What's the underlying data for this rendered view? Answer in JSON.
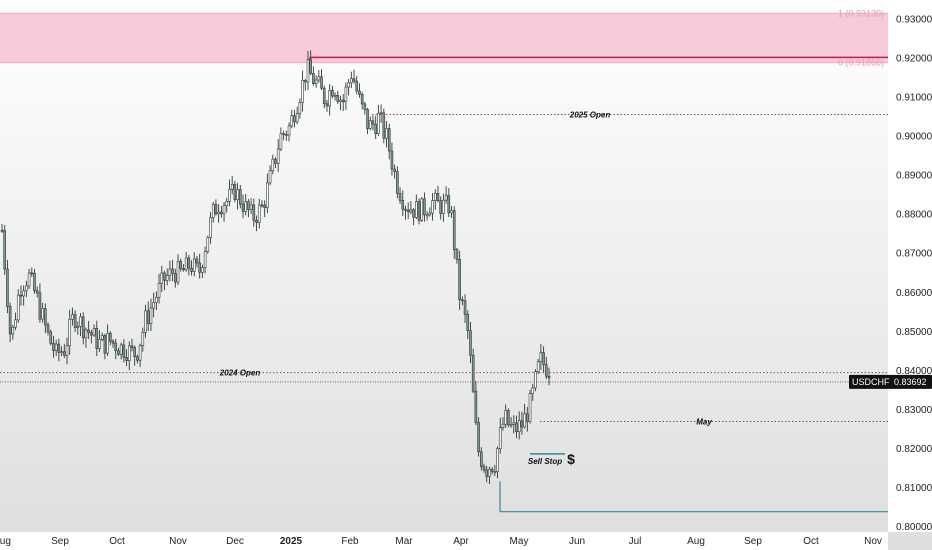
{
  "chart_data": {
    "type": "candlestick",
    "symbol": "USDCHF",
    "last_price": "0.83692",
    "ylim": [
      0.7985,
      0.9347
    ],
    "y_ticks": [
      "0.93000",
      "0.92000",
      "0.91000",
      "0.90000",
      "0.89000",
      "0.88000",
      "0.87000",
      "0.86000",
      "0.85000",
      "0.84000",
      "0.83000",
      "0.82000",
      "0.81000",
      "0.80000"
    ],
    "x_ticks": [
      "Aug",
      "Sep",
      "Oct",
      "Nov",
      "Dec",
      "2025",
      "Feb",
      "Mar",
      "Apr",
      "May",
      "Jun",
      "Jul",
      "Aug",
      "Sep",
      "Oct",
      "Nov"
    ],
    "bold_x_tick": "2025",
    "fib_zone": {
      "upper": 0.9313,
      "lower": 0.91866,
      "upper_label": "1 (0.93130)",
      "lower_label": "0 (0.91866)",
      "color": "#f7cbd9"
    },
    "levels": [
      {
        "name": "2025 Open",
        "value": 0.9054,
        "style": "dotted"
      },
      {
        "name": "2024 Open",
        "value": 0.8393,
        "style": "dotted"
      },
      {
        "name": "May",
        "value": 0.8268,
        "style": "dotted"
      },
      {
        "name": "Sell Stop",
        "value": 0.8185,
        "style": "solid"
      },
      {
        "name": "",
        "value": 0.8037,
        "style": "solid"
      },
      {
        "name": "",
        "value": 0.92,
        "style": "solid"
      }
    ],
    "annotations": {
      "sell_stop_label": "Sell Stop",
      "dollar_symbol": "$"
    },
    "colors": {
      "candle": "#2f3a37",
      "candle_fill": "#7f9691",
      "level_dotted": "#8a4a5a",
      "teal": "#2f8a9a",
      "crimson": "#c2185b",
      "price_line": "#555555"
    },
    "grid": false,
    "price_path": [
      [
        0.8745,
        0.877
      ],
      [
        0.845,
        0.849
      ],
      [
        0.859,
        0.864
      ],
      [
        0.862,
        0.866
      ],
      [
        0.855,
        0.86
      ],
      [
        0.847,
        0.852
      ],
      [
        0.842,
        0.846
      ],
      [
        0.843,
        0.848
      ],
      [
        0.852,
        0.856
      ],
      [
        0.849,
        0.854
      ],
      [
        0.847,
        0.851
      ],
      [
        0.844,
        0.849
      ],
      [
        0.845,
        0.85
      ],
      [
        0.844,
        0.848
      ],
      [
        0.843,
        0.847
      ],
      [
        0.842,
        0.846
      ],
      [
        0.85,
        0.855
      ],
      [
        0.856,
        0.86
      ],
      [
        0.861,
        0.865
      ],
      [
        0.863,
        0.867
      ],
      [
        0.863,
        0.867
      ],
      [
        0.865,
        0.869
      ],
      [
        0.863,
        0.867
      ],
      [
        0.873,
        0.878
      ],
      [
        0.88,
        0.886
      ],
      [
        0.881,
        0.885
      ],
      [
        0.884,
        0.888
      ],
      [
        0.88,
        0.884
      ],
      [
        0.877,
        0.881
      ],
      [
        0.879,
        0.884
      ],
      [
        0.887,
        0.892
      ],
      [
        0.897,
        0.902
      ],
      [
        0.9,
        0.904
      ],
      [
        0.907,
        0.911
      ],
      [
        0.915,
        0.919
      ],
      [
        0.911,
        0.916
      ],
      [
        0.907,
        0.912
      ],
      [
        0.911,
        0.915
      ],
      [
        0.906,
        0.911
      ],
      [
        0.914,
        0.919
      ],
      [
        0.905,
        0.91
      ],
      [
        0.899,
        0.905
      ],
      [
        0.902,
        0.907
      ],
      [
        0.896,
        0.901
      ],
      [
        0.886,
        0.89
      ],
      [
        0.88,
        0.885
      ],
      [
        0.879,
        0.883
      ],
      [
        0.879,
        0.883
      ],
      [
        0.881,
        0.885
      ],
      [
        0.88,
        0.884
      ],
      [
        0.88,
        0.884
      ],
      [
        0.857,
        0.862
      ],
      [
        0.846,
        0.852
      ],
      [
        0.817,
        0.823
      ],
      [
        0.812,
        0.818
      ],
      [
        0.814,
        0.82
      ],
      [
        0.825,
        0.83
      ],
      [
        0.822,
        0.827
      ],
      [
        0.824,
        0.828
      ],
      [
        0.829,
        0.834
      ],
      [
        0.84,
        0.845
      ],
      [
        0.838,
        0.842
      ]
    ]
  }
}
